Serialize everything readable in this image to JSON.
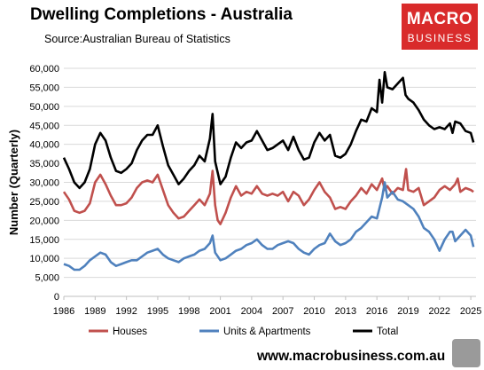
{
  "header": {
    "title": "Dwelling Completions - Australia",
    "source": "Source:Australian Bureau of Statistics"
  },
  "logo": {
    "line1": "MACRO",
    "line2": "BUSINESS"
  },
  "footer": {
    "url": "www.macrobusiness.com.au"
  },
  "colors": {
    "houses": "#c0504d",
    "units": "#4f81bd",
    "total": "#000000",
    "logo": "#d92b2b"
  },
  "chart_data": {
    "type": "line",
    "title": "Dwelling Completions - Australia",
    "xlabel": "",
    "ylabel": "Number (Quarterly)",
    "xlim": [
      1986,
      2025.5
    ],
    "ylim": [
      0,
      60000
    ],
    "yticks": [
      0,
      5000,
      10000,
      15000,
      20000,
      25000,
      30000,
      35000,
      40000,
      45000,
      50000,
      55000,
      60000
    ],
    "ytick_labels": [
      "0",
      "5,000",
      "10,000",
      "15,000",
      "20,000",
      "25,000",
      "30,000",
      "35,000",
      "40,000",
      "45,000",
      "50,000",
      "55,000",
      "60,000"
    ],
    "xticks": [
      1986,
      1989,
      1992,
      1995,
      1998,
      2001,
      2004,
      2007,
      2010,
      2013,
      2016,
      2019,
      2022,
      2025
    ],
    "grid": "horizontal",
    "legend_position": "bottom",
    "series": [
      {
        "name": "Houses",
        "color": "#c0504d",
        "points": [
          [
            1986.0,
            27500
          ],
          [
            1986.5,
            25500
          ],
          [
            1987.0,
            22500
          ],
          [
            1987.5,
            22000
          ],
          [
            1988.0,
            22500
          ],
          [
            1988.5,
            24500
          ],
          [
            1989.0,
            30000
          ],
          [
            1989.5,
            32000
          ],
          [
            1990.0,
            29500
          ],
          [
            1990.5,
            26500
          ],
          [
            1991.0,
            24000
          ],
          [
            1991.5,
            24000
          ],
          [
            1992.0,
            24500
          ],
          [
            1992.5,
            26000
          ],
          [
            1993.0,
            28500
          ],
          [
            1993.5,
            30000
          ],
          [
            1994.0,
            30500
          ],
          [
            1994.5,
            30000
          ],
          [
            1995.0,
            32000
          ],
          [
            1995.5,
            28000
          ],
          [
            1996.0,
            24000
          ],
          [
            1996.5,
            22000
          ],
          [
            1997.0,
            20500
          ],
          [
            1997.5,
            21000
          ],
          [
            1998.0,
            22500
          ],
          [
            1998.5,
            24000
          ],
          [
            1999.0,
            25500
          ],
          [
            1999.5,
            24000
          ],
          [
            2000.0,
            27000
          ],
          [
            2000.25,
            33000
          ],
          [
            2000.5,
            24000
          ],
          [
            2000.75,
            20000
          ],
          [
            2001.0,
            19000
          ],
          [
            2001.5,
            22000
          ],
          [
            2002.0,
            26000
          ],
          [
            2002.5,
            29000
          ],
          [
            2003.0,
            26500
          ],
          [
            2003.5,
            27500
          ],
          [
            2004.0,
            27000
          ],
          [
            2004.5,
            29000
          ],
          [
            2005.0,
            27000
          ],
          [
            2005.5,
            26500
          ],
          [
            2006.0,
            27000
          ],
          [
            2006.5,
            26500
          ],
          [
            2007.0,
            27500
          ],
          [
            2007.5,
            25000
          ],
          [
            2008.0,
            27500
          ],
          [
            2008.5,
            26500
          ],
          [
            2009.0,
            24000
          ],
          [
            2009.5,
            25500
          ],
          [
            2010.0,
            28000
          ],
          [
            2010.5,
            30000
          ],
          [
            2011.0,
            27500
          ],
          [
            2011.5,
            26000
          ],
          [
            2012.0,
            23000
          ],
          [
            2012.5,
            23500
          ],
          [
            2013.0,
            23000
          ],
          [
            2013.5,
            25000
          ],
          [
            2014.0,
            26500
          ],
          [
            2014.5,
            28500
          ],
          [
            2015.0,
            27000
          ],
          [
            2015.5,
            29500
          ],
          [
            2016.0,
            28000
          ],
          [
            2016.5,
            31000
          ],
          [
            2016.75,
            28000
          ],
          [
            2017.0,
            29000
          ],
          [
            2017.5,
            27000
          ],
          [
            2018.0,
            28500
          ],
          [
            2018.5,
            28000
          ],
          [
            2018.8,
            33500
          ],
          [
            2019.0,
            28000
          ],
          [
            2019.5,
            27500
          ],
          [
            2020.0,
            28500
          ],
          [
            2020.5,
            24000
          ],
          [
            2021.0,
            25000
          ],
          [
            2021.5,
            26000
          ],
          [
            2022.0,
            28000
          ],
          [
            2022.5,
            29000
          ],
          [
            2023.0,
            28000
          ],
          [
            2023.5,
            29500
          ],
          [
            2023.75,
            31000
          ],
          [
            2024.0,
            27500
          ],
          [
            2024.5,
            28500
          ],
          [
            2025.0,
            28000
          ],
          [
            2025.25,
            27500
          ]
        ]
      },
      {
        "name": "Units & Apartments",
        "color": "#4f81bd",
        "points": [
          [
            1986.0,
            8500
          ],
          [
            1986.5,
            8000
          ],
          [
            1987.0,
            7000
          ],
          [
            1987.5,
            7000
          ],
          [
            1988.0,
            8000
          ],
          [
            1988.5,
            9500
          ],
          [
            1989.0,
            10500
          ],
          [
            1989.5,
            11500
          ],
          [
            1990.0,
            11000
          ],
          [
            1990.5,
            9000
          ],
          [
            1991.0,
            8000
          ],
          [
            1991.5,
            8500
          ],
          [
            1992.0,
            9000
          ],
          [
            1992.5,
            9500
          ],
          [
            1993.0,
            9500
          ],
          [
            1993.5,
            10500
          ],
          [
            1994.0,
            11500
          ],
          [
            1994.5,
            12000
          ],
          [
            1995.0,
            12500
          ],
          [
            1995.5,
            11000
          ],
          [
            1996.0,
            10000
          ],
          [
            1996.5,
            9500
          ],
          [
            1997.0,
            9000
          ],
          [
            1997.5,
            10000
          ],
          [
            1998.0,
            10500
          ],
          [
            1998.5,
            11000
          ],
          [
            1999.0,
            12000
          ],
          [
            1999.5,
            12500
          ],
          [
            2000.0,
            14000
          ],
          [
            2000.25,
            16000
          ],
          [
            2000.5,
            11500
          ],
          [
            2001.0,
            9500
          ],
          [
            2001.5,
            10000
          ],
          [
            2002.0,
            11000
          ],
          [
            2002.5,
            12000
          ],
          [
            2003.0,
            12500
          ],
          [
            2003.5,
            13500
          ],
          [
            2004.0,
            14000
          ],
          [
            2004.5,
            15000
          ],
          [
            2005.0,
            13500
          ],
          [
            2005.5,
            12500
          ],
          [
            2006.0,
            12500
          ],
          [
            2006.5,
            13500
          ],
          [
            2007.0,
            14000
          ],
          [
            2007.5,
            14500
          ],
          [
            2008.0,
            14000
          ],
          [
            2008.5,
            12500
          ],
          [
            2009.0,
            11500
          ],
          [
            2009.5,
            11000
          ],
          [
            2010.0,
            12500
          ],
          [
            2010.5,
            13500
          ],
          [
            2011.0,
            14000
          ],
          [
            2011.5,
            16500
          ],
          [
            2012.0,
            14500
          ],
          [
            2012.5,
            13500
          ],
          [
            2013.0,
            14000
          ],
          [
            2013.5,
            15000
          ],
          [
            2014.0,
            17000
          ],
          [
            2014.5,
            18000
          ],
          [
            2015.0,
            19500
          ],
          [
            2015.5,
            21000
          ],
          [
            2016.0,
            20500
          ],
          [
            2016.5,
            26000
          ],
          [
            2016.75,
            30000
          ],
          [
            2017.0,
            26000
          ],
          [
            2017.5,
            27500
          ],
          [
            2018.0,
            25500
          ],
          [
            2018.5,
            25000
          ],
          [
            2019.0,
            24000
          ],
          [
            2019.5,
            23000
          ],
          [
            2020.0,
            21000
          ],
          [
            2020.5,
            18000
          ],
          [
            2021.0,
            17000
          ],
          [
            2021.5,
            15000
          ],
          [
            2022.0,
            12000
          ],
          [
            2022.5,
            15000
          ],
          [
            2023.0,
            17000
          ],
          [
            2023.25,
            17000
          ],
          [
            2023.5,
            14500
          ],
          [
            2024.0,
            16000
          ],
          [
            2024.5,
            17500
          ],
          [
            2025.0,
            16000
          ],
          [
            2025.25,
            13000
          ]
        ]
      },
      {
        "name": "Total",
        "color": "#000000",
        "points": [
          [
            1986.0,
            36500
          ],
          [
            1986.5,
            33500
          ],
          [
            1987.0,
            30000
          ],
          [
            1987.5,
            28500
          ],
          [
            1988.0,
            30000
          ],
          [
            1988.5,
            33500
          ],
          [
            1989.0,
            40000
          ],
          [
            1989.5,
            43000
          ],
          [
            1990.0,
            41000
          ],
          [
            1990.5,
            36500
          ],
          [
            1991.0,
            33000
          ],
          [
            1991.5,
            32500
          ],
          [
            1992.0,
            33500
          ],
          [
            1992.5,
            35000
          ],
          [
            1993.0,
            38500
          ],
          [
            1993.5,
            41000
          ],
          [
            1994.0,
            42500
          ],
          [
            1994.5,
            42500
          ],
          [
            1995.0,
            45000
          ],
          [
            1995.5,
            39500
          ],
          [
            1996.0,
            34500
          ],
          [
            1996.5,
            32000
          ],
          [
            1997.0,
            29500
          ],
          [
            1997.5,
            31000
          ],
          [
            1998.0,
            33000
          ],
          [
            1998.5,
            34500
          ],
          [
            1999.0,
            37000
          ],
          [
            1999.5,
            35500
          ],
          [
            2000.0,
            41500
          ],
          [
            2000.25,
            48000
          ],
          [
            2000.5,
            35500
          ],
          [
            2001.0,
            29500
          ],
          [
            2001.5,
            31500
          ],
          [
            2002.0,
            36500
          ],
          [
            2002.5,
            40500
          ],
          [
            2003.0,
            39000
          ],
          [
            2003.5,
            40500
          ],
          [
            2004.0,
            41000
          ],
          [
            2004.5,
            43500
          ],
          [
            2005.0,
            41000
          ],
          [
            2005.5,
            38500
          ],
          [
            2006.0,
            39000
          ],
          [
            2006.5,
            40000
          ],
          [
            2007.0,
            41000
          ],
          [
            2007.5,
            38500
          ],
          [
            2008.0,
            42000
          ],
          [
            2008.5,
            38500
          ],
          [
            2009.0,
            36000
          ],
          [
            2009.5,
            36500
          ],
          [
            2010.0,
            40500
          ],
          [
            2010.5,
            43000
          ],
          [
            2011.0,
            41000
          ],
          [
            2011.5,
            42500
          ],
          [
            2012.0,
            37000
          ],
          [
            2012.5,
            36500
          ],
          [
            2013.0,
            37500
          ],
          [
            2013.5,
            40000
          ],
          [
            2014.0,
            43500
          ],
          [
            2014.5,
            46500
          ],
          [
            2015.0,
            46000
          ],
          [
            2015.5,
            49500
          ],
          [
            2016.0,
            48500
          ],
          [
            2016.25,
            57000
          ],
          [
            2016.5,
            51000
          ],
          [
            2016.75,
            59000
          ],
          [
            2017.0,
            55000
          ],
          [
            2017.5,
            54500
          ],
          [
            2018.0,
            56000
          ],
          [
            2018.5,
            57500
          ],
          [
            2018.75,
            53000
          ],
          [
            2019.0,
            52000
          ],
          [
            2019.5,
            51000
          ],
          [
            2020.0,
            49000
          ],
          [
            2020.5,
            46500
          ],
          [
            2021.0,
            45000
          ],
          [
            2021.5,
            44000
          ],
          [
            2022.0,
            44500
          ],
          [
            2022.5,
            44000
          ],
          [
            2023.0,
            45500
          ],
          [
            2023.25,
            43000
          ],
          [
            2023.5,
            46000
          ],
          [
            2024.0,
            45500
          ],
          [
            2024.5,
            43500
          ],
          [
            2025.0,
            43000
          ],
          [
            2025.25,
            40500
          ]
        ]
      }
    ]
  }
}
